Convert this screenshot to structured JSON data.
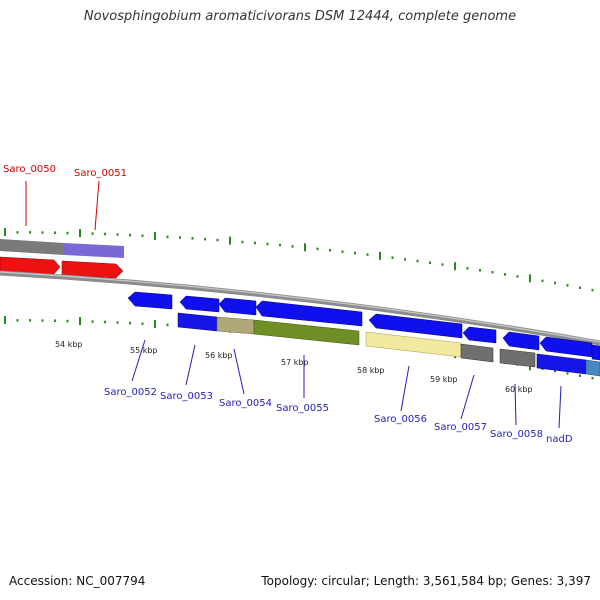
{
  "title": "Novosphingobium aromaticivorans DSM 12444, complete genome",
  "footer": {
    "accession": "Accession: NC_007794",
    "genome_info": "Topology: circular; Length: 3,561,584 bp; Genes: 3,397"
  },
  "colors": {
    "backbone": "#8c8c8c",
    "tick": "#2a8a1e",
    "label_top": "#cc0000",
    "label_bottom": "#1f1fb8"
  },
  "scale_labels": [
    "54 kbp",
    "55 kbp",
    "56 kbp",
    "57 kbp",
    "58 kbp",
    "59 kbp",
    "60 kbp"
  ],
  "gene_labels": {
    "top": [
      "Saro_0050",
      "Saro_0051"
    ],
    "bottom": [
      "Saro_0052",
      "Saro_0053",
      "Saro_0054",
      "Saro_0055",
      "Saro_0056",
      "Saro_0057",
      "Saro_0058",
      "nadD"
    ]
  }
}
